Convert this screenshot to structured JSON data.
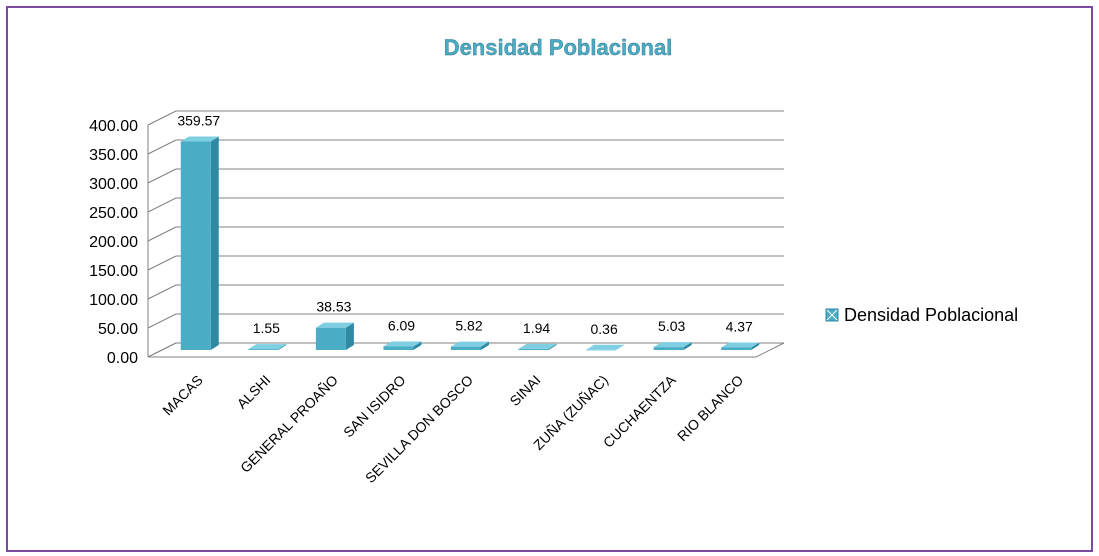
{
  "chart_data": {
    "type": "bar",
    "title": "Densidad Poblacional",
    "categories": [
      "MACAS",
      "ALSHI",
      "GENERAL PROAÑO",
      "SAN ISIDRO",
      "SEVILLA DON BOSCO",
      "SINAI",
      "ZUÑA (ZUÑAC)",
      "CUCHAENTZA",
      "RIO BLANCO"
    ],
    "series": [
      {
        "name": "Densidad Poblacional",
        "values": [
          359.57,
          1.55,
          38.53,
          6.09,
          5.82,
          1.94,
          0.36,
          5.03,
          4.37
        ],
        "labels": [
          "359.57",
          "1.55",
          "38.53",
          "6.09",
          "5.82",
          "1.94",
          "0.36",
          "5.03",
          "4.37"
        ]
      }
    ],
    "ylim": [
      0,
      400
    ],
    "yticks": [
      "0.00",
      "50.00",
      "100.00",
      "150.00",
      "200.00",
      "250.00",
      "300.00",
      "350.00",
      "400.00"
    ],
    "xlabel": "",
    "ylabel": "",
    "grid": true,
    "legend": "right",
    "colors": {
      "bar": "#4bacc6",
      "bar_dark": "#2e8aa3",
      "bar_light": "#7fcfe3",
      "title": "#4bacc6",
      "grid": "#808080",
      "frame": "#7a4a9e"
    }
  }
}
